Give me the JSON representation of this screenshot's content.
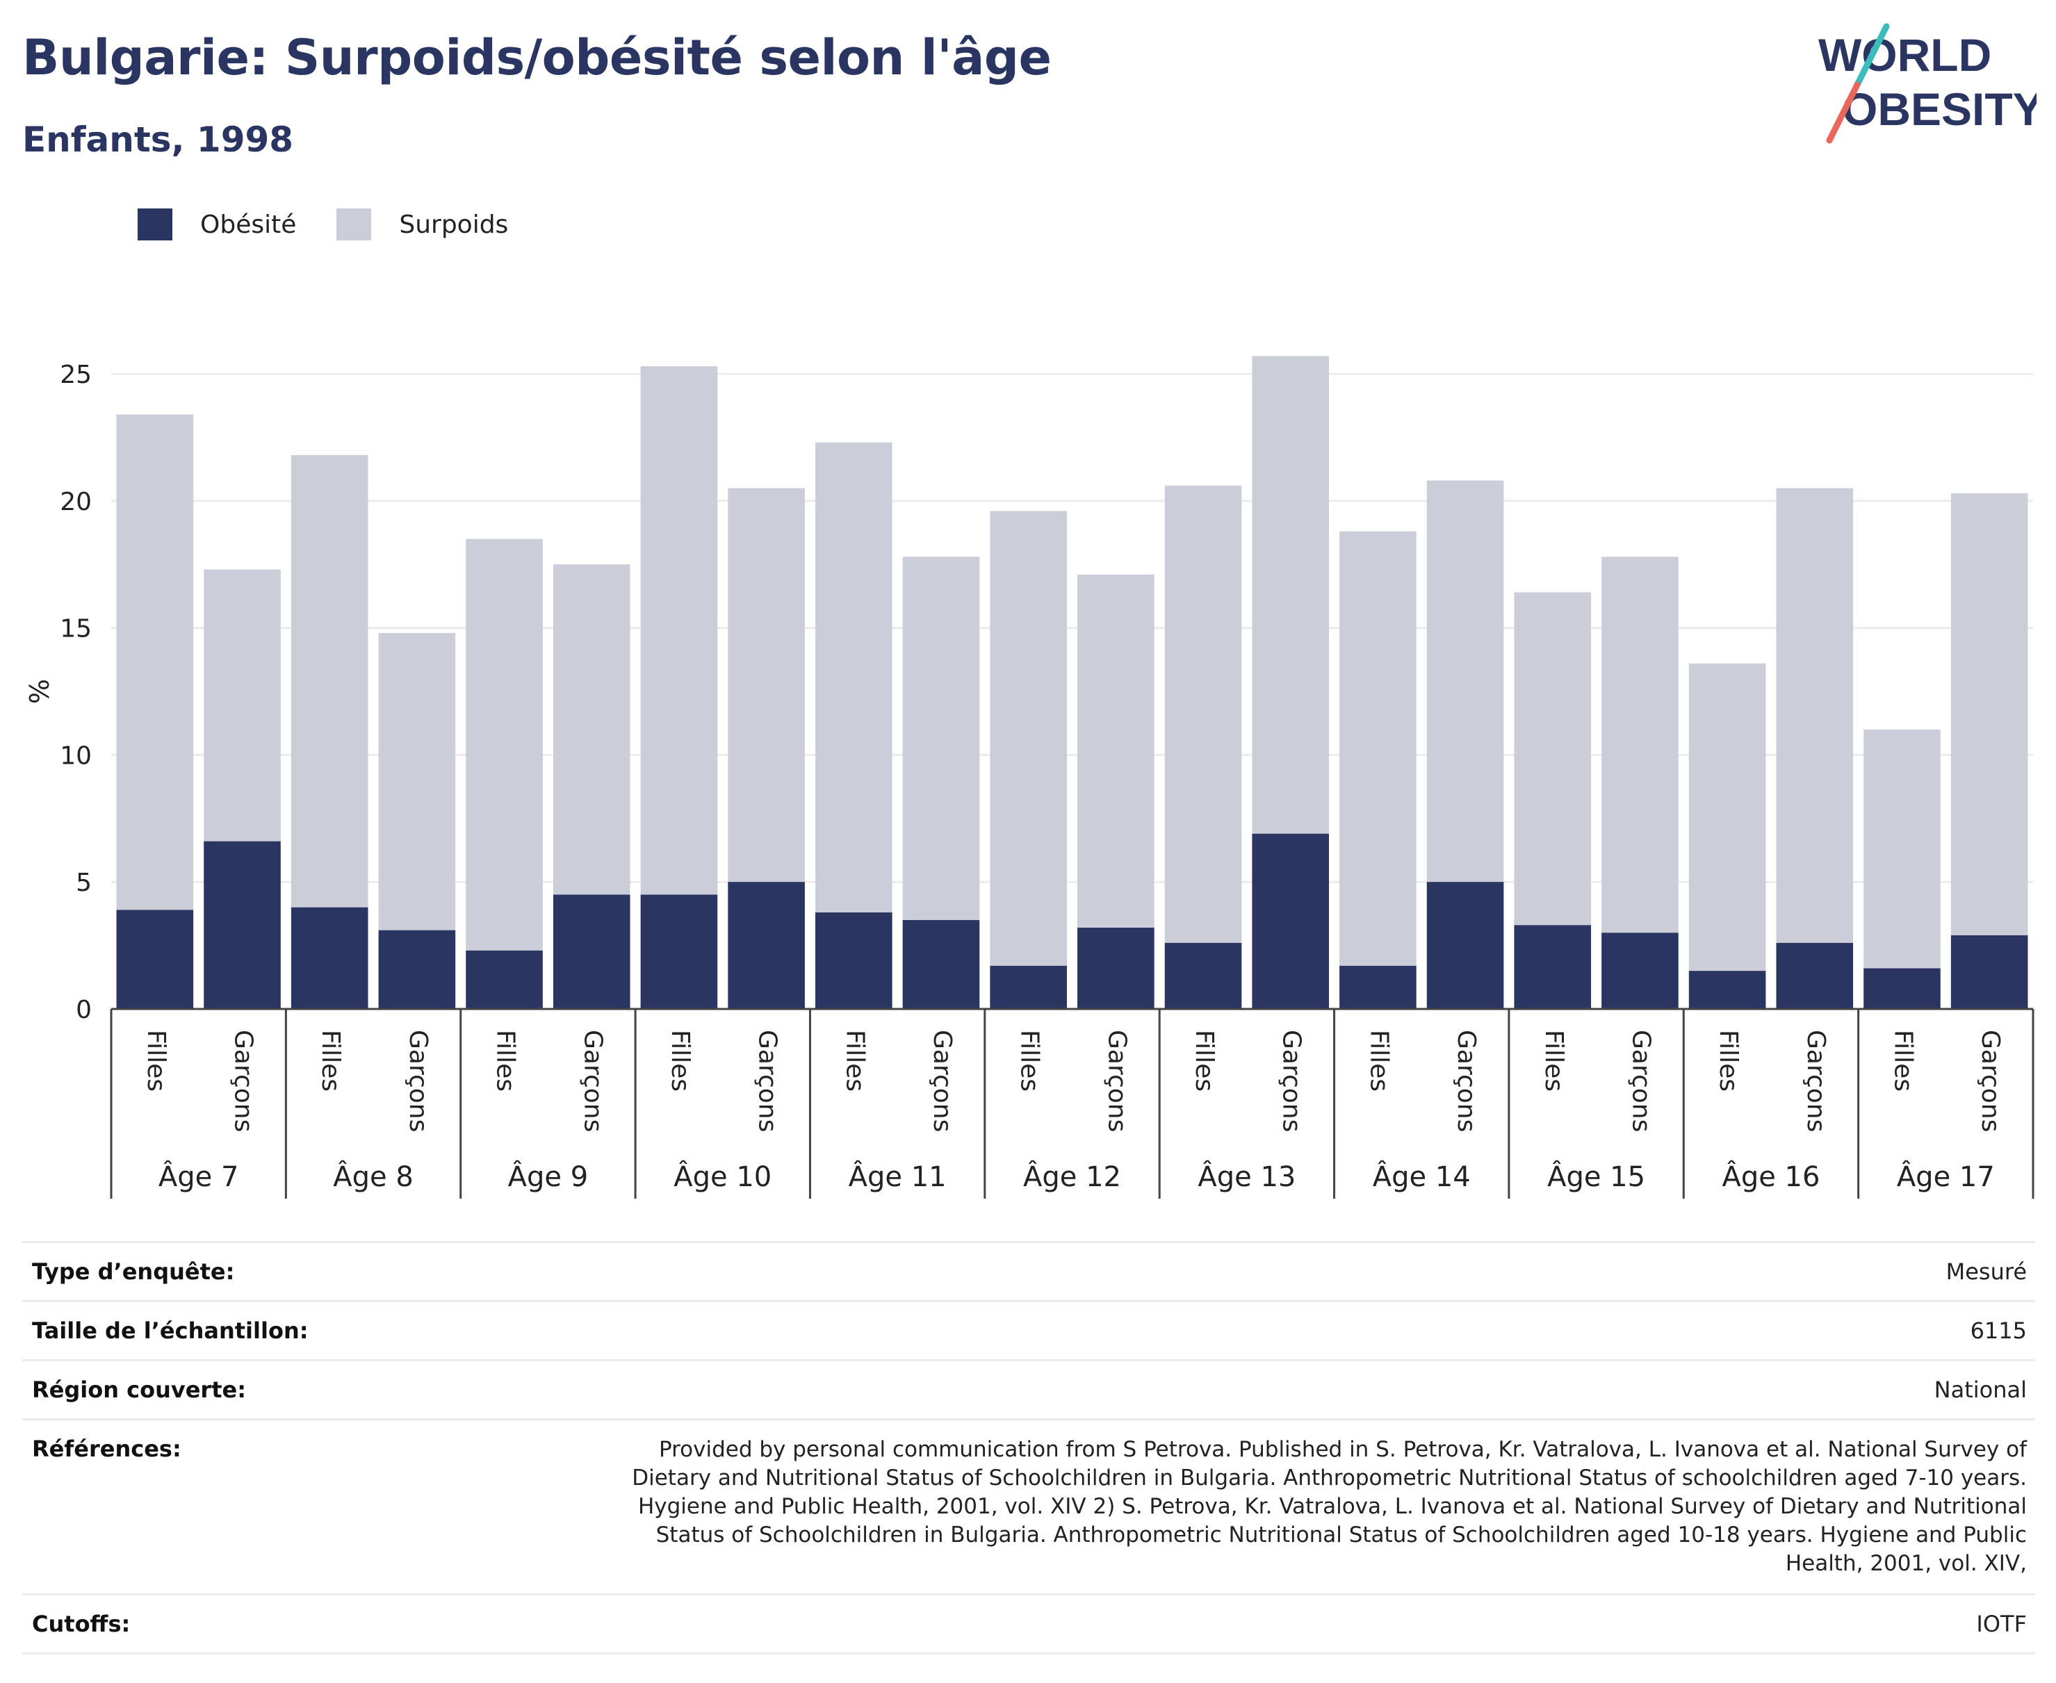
{
  "header": {
    "title": "Bulgarie: Surpoids/obésité selon l'âge",
    "subtitle": "Enfants, 1998"
  },
  "logo": {
    "line1": "WORLD",
    "line2": "OBESITY"
  },
  "colors": {
    "obesity": "#2a3562",
    "overweight": "#cbcdd9",
    "title": "#2a3562",
    "logo_teal": "#3bbdbd",
    "logo_red": "#e8665a"
  },
  "chart_data": {
    "type": "bar",
    "stacked": true,
    "ylabel": "%",
    "ylim": [
      0,
      25
    ],
    "yticks": [
      0,
      5,
      10,
      15,
      20,
      25
    ],
    "grid": true,
    "legend_position": "top-left",
    "groups": [
      "Âge 7",
      "Âge 8",
      "Âge 9",
      "Âge 10",
      "Âge 11",
      "Âge 12",
      "Âge 13",
      "Âge 14",
      "Âge 15",
      "Âge 16",
      "Âge 17"
    ],
    "subcategories": [
      "Filles",
      "Garçons"
    ],
    "series": [
      {
        "name": "Obésité",
        "values": [
          3.9,
          6.6,
          4.0,
          3.1,
          2.3,
          4.5,
          4.5,
          5.0,
          3.8,
          3.5,
          1.7,
          3.2,
          2.6,
          6.9,
          1.7,
          5.0,
          3.3,
          3.0,
          1.5,
          2.6,
          1.6,
          2.9
        ]
      },
      {
        "name": "Surpoids",
        "values": [
          19.5,
          10.7,
          17.8,
          11.7,
          16.2,
          13.0,
          20.8,
          15.5,
          18.5,
          14.3,
          17.9,
          13.9,
          18.0,
          18.8,
          17.1,
          15.8,
          13.1,
          14.8,
          12.1,
          17.9,
          9.4,
          17.4
        ]
      }
    ]
  },
  "info": [
    {
      "label": "Type d’enquête:",
      "value": "Mesuré"
    },
    {
      "label": "Taille de l’échantillon:",
      "value": "6115"
    },
    {
      "label": "Région couverte:",
      "value": "National"
    },
    {
      "label": "Références:",
      "value": "Provided by personal communication from S Petrova. Published in S. Petrova, Kr. Vatralova, L. Ivanova et al. National Survey of Dietary and Nutritional Status of Schoolchildren in Bulgaria. Anthropometric Nutritional Status of schoolchildren aged 7-10 years. Hygiene and Public Health, 2001, vol. XIV 2) S. Petrova, Kr. Vatralova, L. Ivanova et al. National Survey of Dietary and Nutritional Status of Schoolchildren in Bulgaria. Anthropometric Nutritional Status of Schoolchildren aged 10-18 years. Hygiene and Public Health, 2001, vol. XIV,"
    },
    {
      "label": "Cutoffs:",
      "value": "IOTF"
    }
  ]
}
